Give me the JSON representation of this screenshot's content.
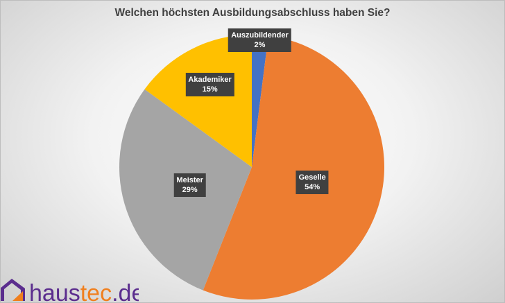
{
  "chart_data": {
    "type": "pie",
    "title": "Welchen höchsten Ausbildungsabschluss haben Sie?",
    "start_angle": "12 o'clock",
    "direction": "clockwise",
    "slices": [
      {
        "label": "Auszubildender",
        "value": 2,
        "display": "2%",
        "color": "#4472c4"
      },
      {
        "label": "Geselle",
        "value": 54,
        "display": "54%",
        "color": "#ed7d31"
      },
      {
        "label": "Meister",
        "value": 29,
        "display": "29%",
        "color": "#a5a5a5"
      },
      {
        "label": "Akademiker",
        "value": 15,
        "display": "15%",
        "color": "#ffc000"
      }
    ]
  },
  "logo": {
    "text": "haustec.de",
    "colors": {
      "purple": "#5b2d8e",
      "orange": "#f07f1e"
    }
  }
}
